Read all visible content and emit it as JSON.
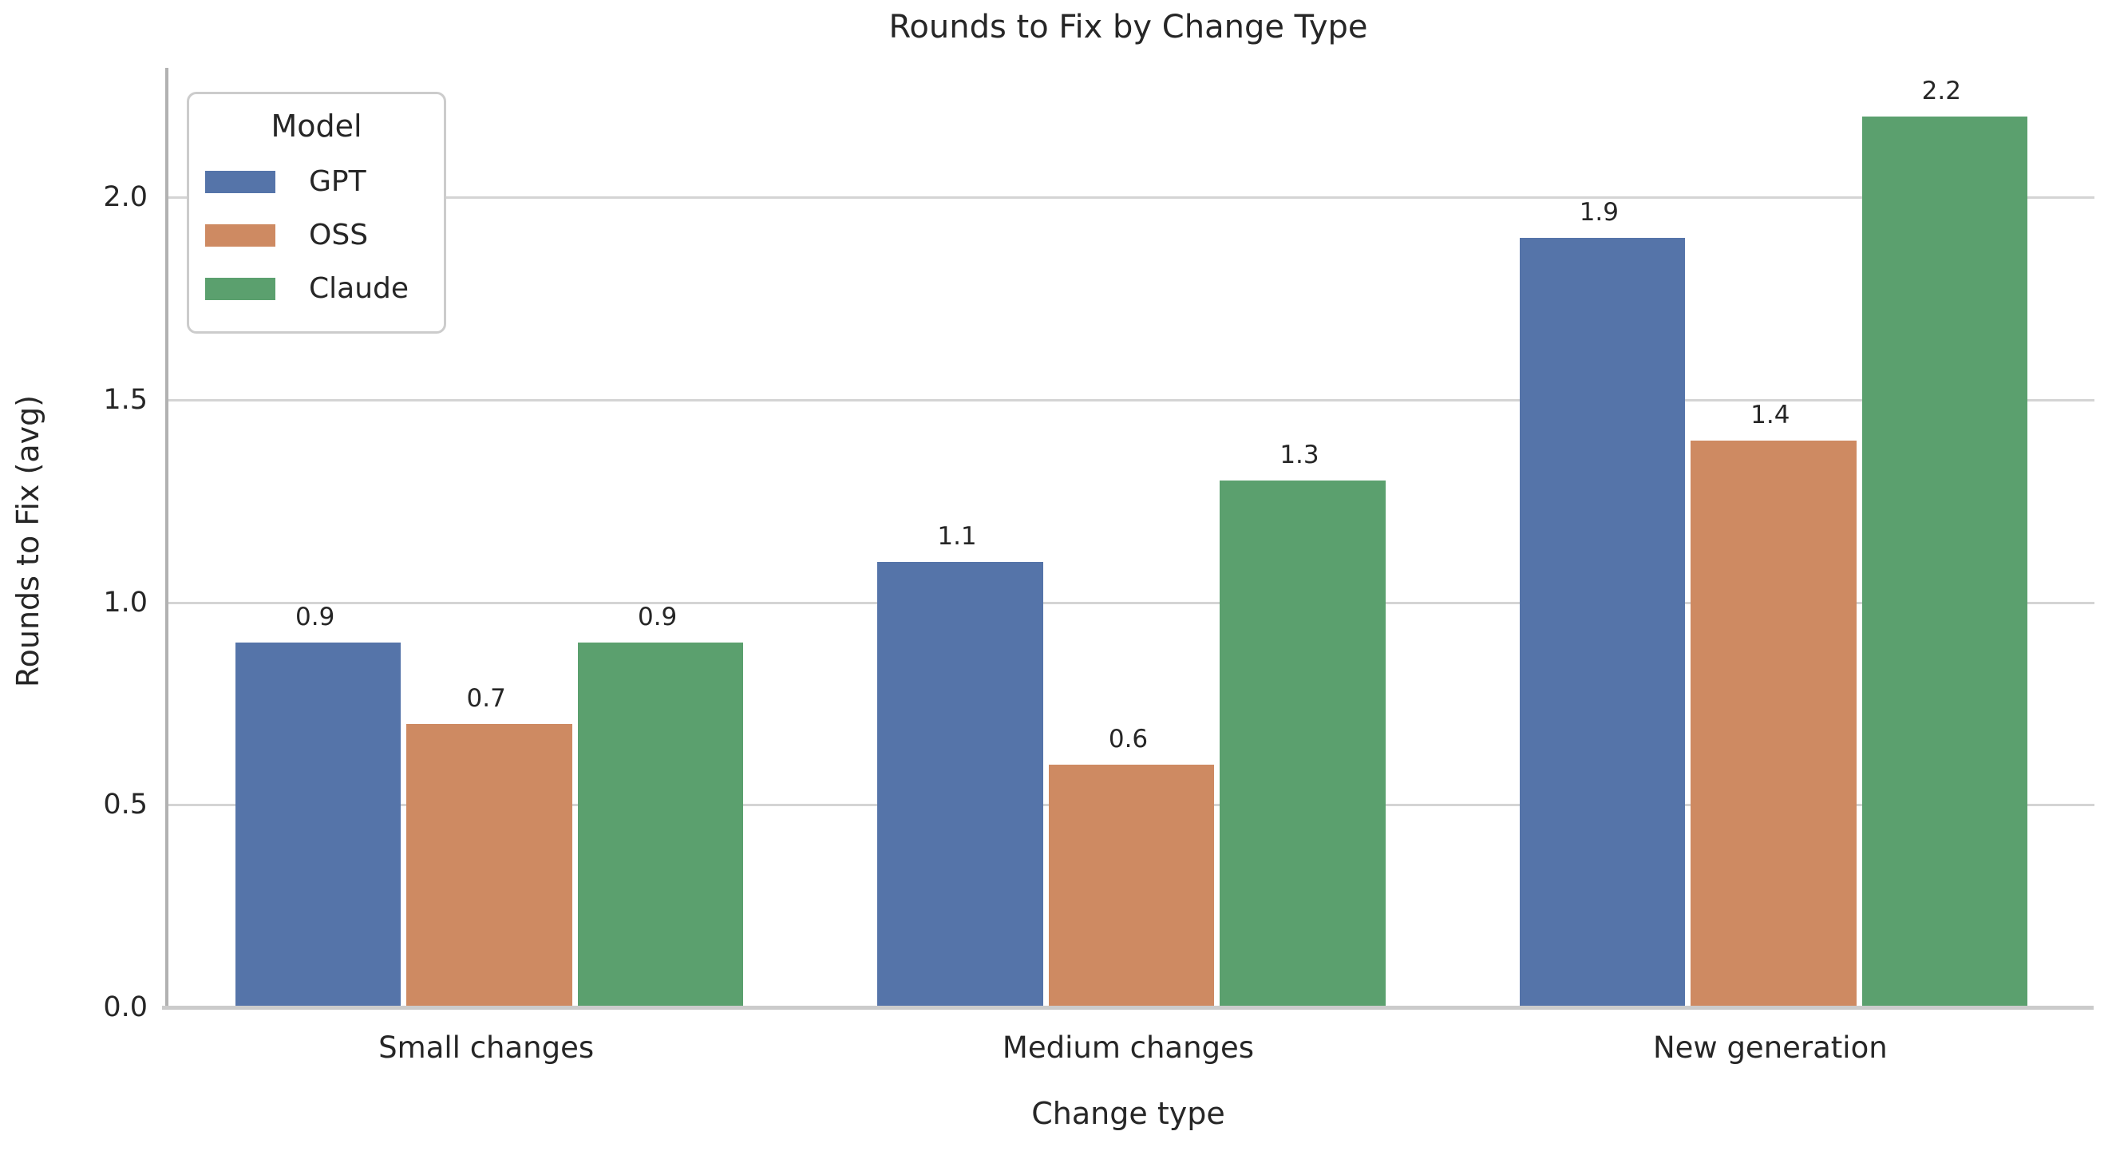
{
  "chart_data": {
    "type": "bar",
    "title": "Rounds to Fix by Change Type",
    "xlabel": "Change type",
    "ylabel": "Rounds to Fix (avg)",
    "categories": [
      "Small changes",
      "Medium changes",
      "New generation"
    ],
    "series": [
      {
        "name": "GPT",
        "color": "#5574A9",
        "values": [
          0.9,
          1.1,
          1.9
        ]
      },
      {
        "name": "OSS",
        "color": "#CE8A62",
        "values": [
          0.7,
          0.6,
          1.4
        ]
      },
      {
        "name": "Claude",
        "color": "#5BA06E",
        "values": [
          0.9,
          1.3,
          2.2
        ]
      }
    ],
    "legend_title": "Model",
    "legend_position": "upper left",
    "yticks": [
      0.0,
      0.5,
      1.0,
      1.5,
      2.0
    ],
    "ylim": [
      0,
      2.32
    ],
    "grid": "horizontal",
    "bar_labels": true,
    "colors": {
      "text": "#262626",
      "gridline": "#d4d4d4",
      "axis_left_spine": "#b2b2b2",
      "axis_bottom_line": "#cbcbcb",
      "legend_border": "#cccccc",
      "background": "#ffffff"
    }
  }
}
